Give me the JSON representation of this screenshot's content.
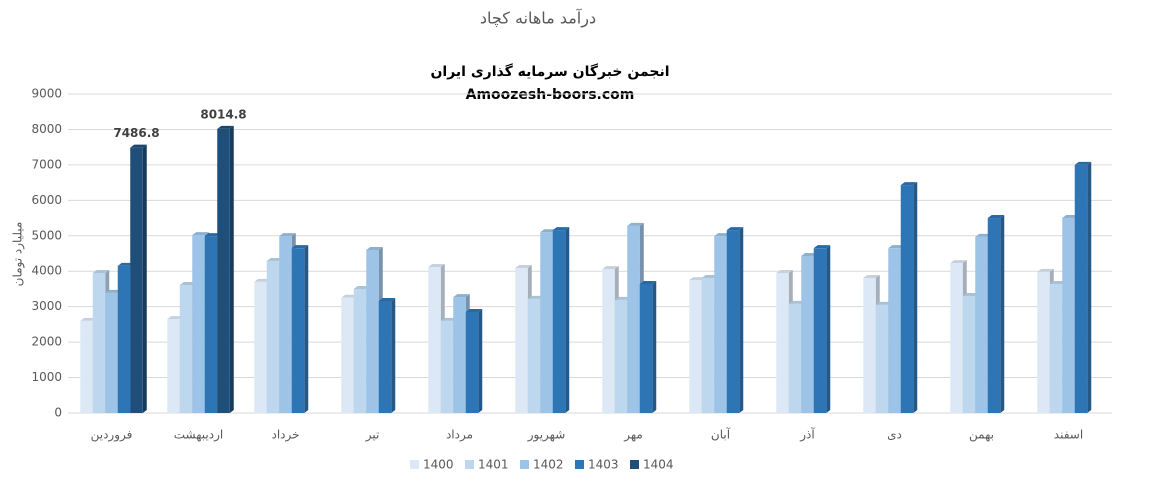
{
  "chart_data": {
    "type": "bar3d",
    "title": "درآمد ماهانه کچاد",
    "subtitle": [
      "انجمن خبرگان سرمایه گذاری ایران",
      "Amoozesh-boors.com"
    ],
    "y_label": "میلیارد تومان",
    "categories": [
      "فروردین",
      "اردیبهشت",
      "خرداد",
      "تیر",
      "مرداد",
      "شهریور",
      "مهر",
      "آبان",
      "آذر",
      "دی",
      "بهمن",
      "اسفند"
    ],
    "series": [
      {
        "name": "1400",
        "color": "#dde8f6",
        "values": [
          2600,
          2650,
          3700,
          3250,
          4120,
          4090,
          4060,
          3750,
          3950,
          3810,
          4230,
          3980
        ]
      },
      {
        "name": "1401",
        "color": "#bdd7ee",
        "values": [
          3950,
          3610,
          4290,
          3500,
          2600,
          3220,
          3190,
          3810,
          3080,
          3050,
          3300,
          3640
        ]
      },
      {
        "name": "1402",
        "color": "#9dc3e6",
        "values": [
          3390,
          5020,
          4990,
          4600,
          3270,
          5100,
          5280,
          4990,
          4430,
          4650,
          4970,
          5500
        ]
      },
      {
        "name": "1403",
        "color": "#2e75b6",
        "values": [
          4150,
          4990,
          4650,
          3160,
          2850,
          5160,
          3640,
          5160,
          4650,
          6430,
          5500,
          7000
        ]
      },
      {
        "name": "1404",
        "color": "#1f4e79",
        "values": [
          7486.8,
          8014.8,
          null,
          null,
          null,
          null,
          null,
          null,
          null,
          null,
          null,
          null
        ],
        "show_values": true
      }
    ],
    "ylim": [
      0,
      9000
    ],
    "yticks": [
      0,
      1000,
      2000,
      3000,
      4000,
      5000,
      6000,
      7000,
      8000,
      9000
    ],
    "grid": true,
    "legend": "bottom"
  }
}
